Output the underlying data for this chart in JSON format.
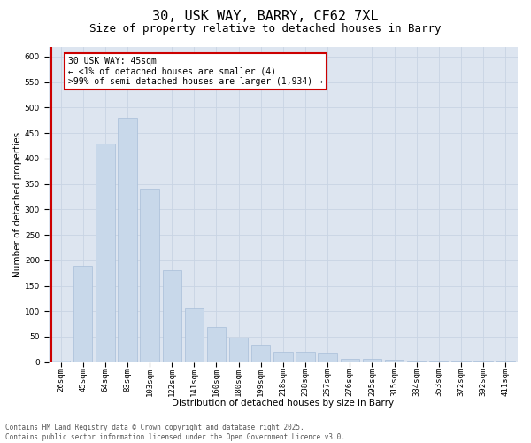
{
  "title_line1": "30, USK WAY, BARRY, CF62 7XL",
  "title_line2": "Size of property relative to detached houses in Barry",
  "xlabel": "Distribution of detached houses by size in Barry",
  "ylabel": "Number of detached properties",
  "categories": [
    "26sqm",
    "45sqm",
    "64sqm",
    "83sqm",
    "103sqm",
    "122sqm",
    "141sqm",
    "160sqm",
    "180sqm",
    "199sqm",
    "218sqm",
    "238sqm",
    "257sqm",
    "276sqm",
    "295sqm",
    "315sqm",
    "334sqm",
    "353sqm",
    "372sqm",
    "392sqm",
    "411sqm"
  ],
  "values": [
    3,
    190,
    430,
    480,
    340,
    180,
    105,
    70,
    48,
    35,
    20,
    20,
    18,
    7,
    7,
    4,
    2,
    1,
    2,
    1,
    1
  ],
  "bar_color": "#c8d8ea",
  "bar_edge_color": "#a8bed8",
  "red_line_color": "#cc0000",
  "annotation_text": "30 USK WAY: 45sqm\n← <1% of detached houses are smaller (4)\n>99% of semi-detached houses are larger (1,934) →",
  "annotation_box_facecolor": "#ffffff",
  "annotation_box_edgecolor": "#cc0000",
  "ylim_max": 620,
  "yticks": [
    0,
    50,
    100,
    150,
    200,
    250,
    300,
    350,
    400,
    450,
    500,
    550,
    600
  ],
  "grid_color": "#c8d4e4",
  "plot_bg_color": "#dde5f0",
  "footer_text": "Contains HM Land Registry data © Crown copyright and database right 2025.\nContains public sector information licensed under the Open Government Licence v3.0.",
  "title_fontsize": 11,
  "subtitle_fontsize": 9,
  "axis_label_fontsize": 7.5,
  "tick_fontsize": 6.5,
  "annot_fontsize": 7,
  "footer_fontsize": 5.5
}
